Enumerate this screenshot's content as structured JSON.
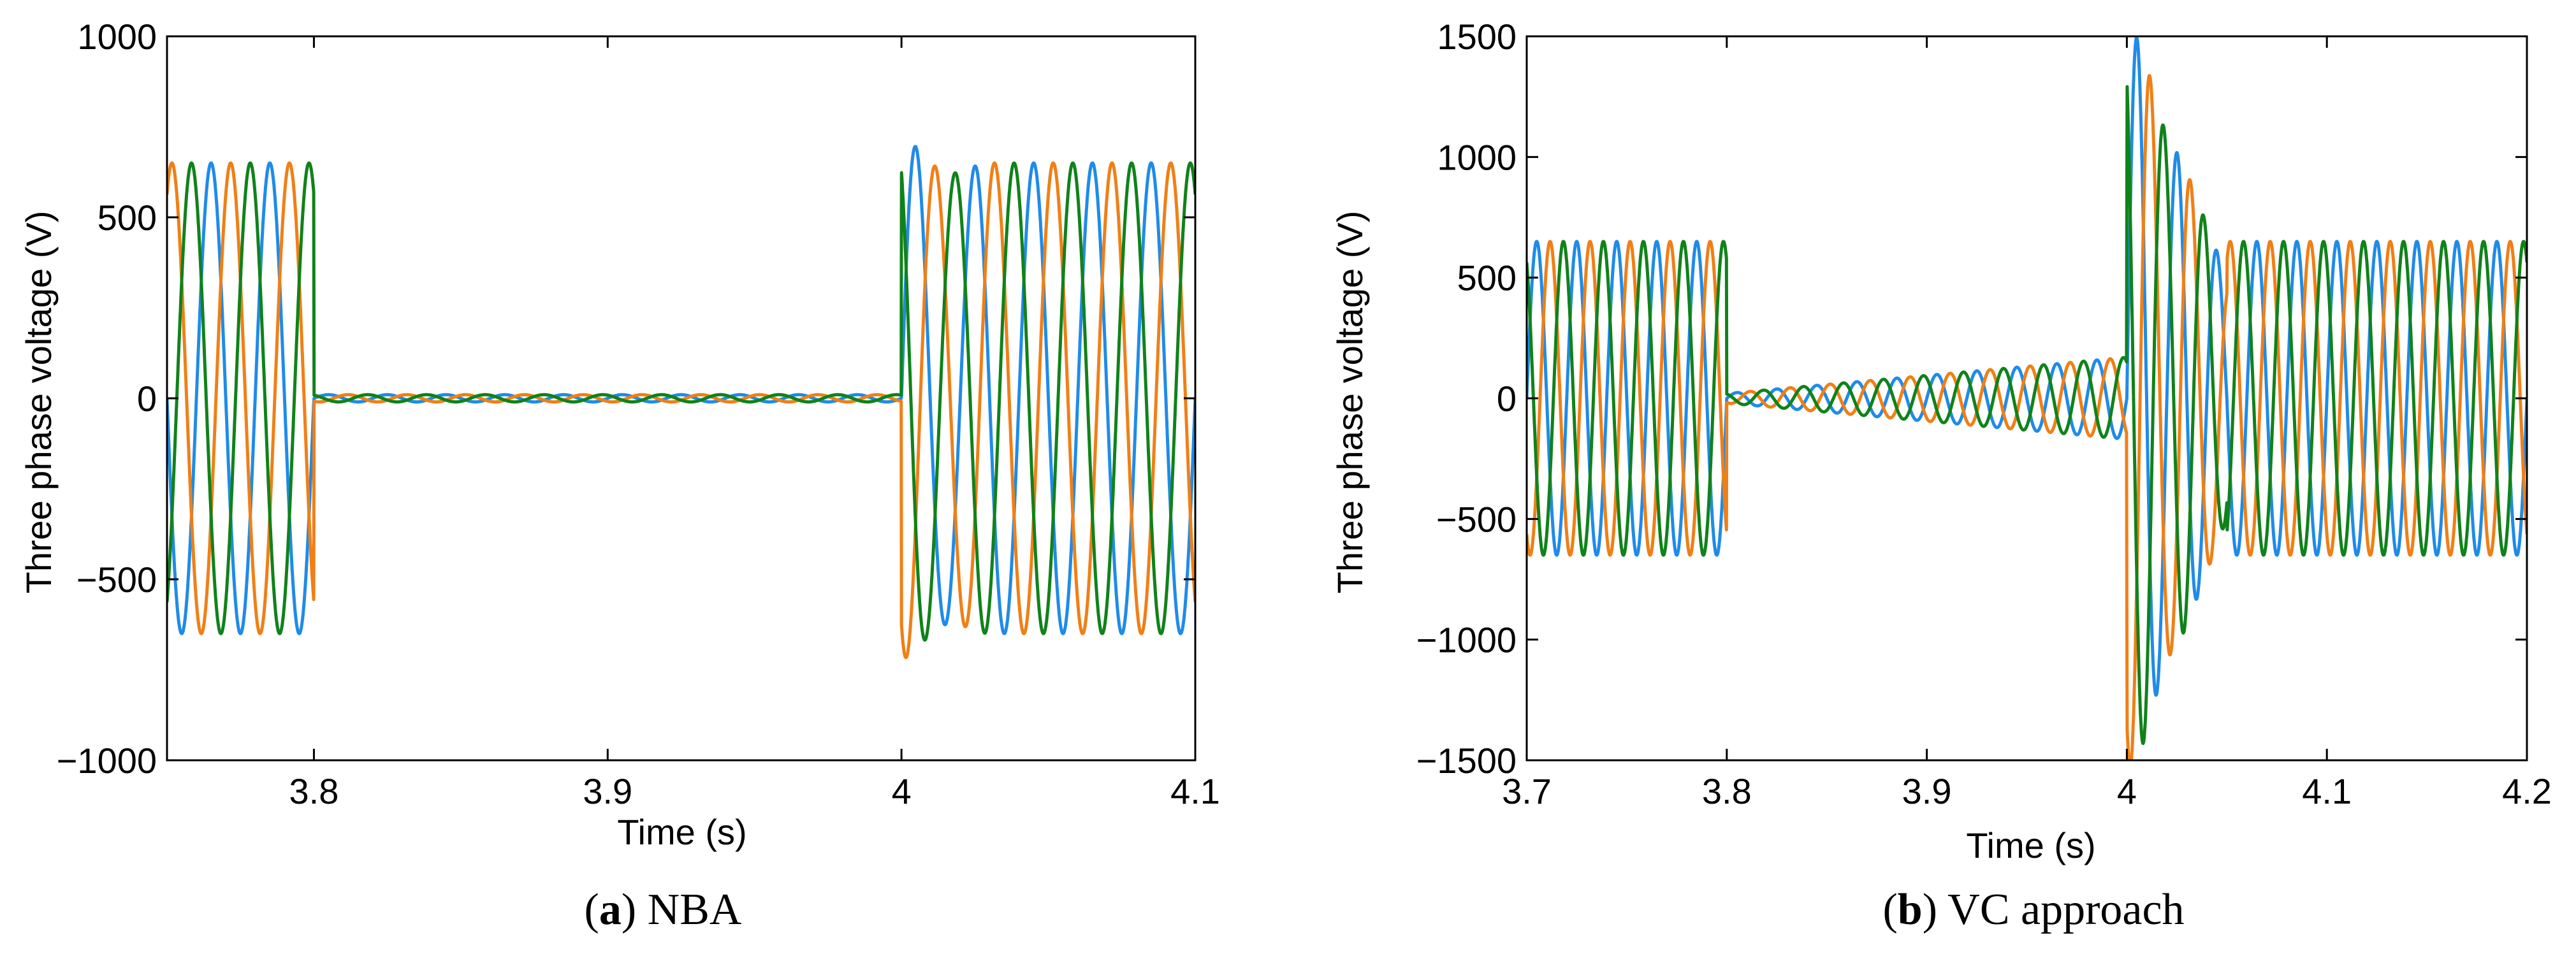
{
  "colors": {
    "phase_a": "#1f8be8",
    "phase_b": "#f07f16",
    "phase_c": "#10821a"
  },
  "chart_data": [
    {
      "type": "line",
      "caption_letter": "a",
      "caption_text": "NBA",
      "xlabel": "Time (s)",
      "ylabel": "Three phase voltage (V)",
      "xlim": [
        3.75,
        4.1
      ],
      "ylim": [
        -1000,
        1000
      ],
      "xticks": [
        3.8,
        3.9,
        4.0,
        4.1
      ],
      "xtick_labels": [
        "3.8",
        "3.9",
        "4",
        "4.1"
      ],
      "yticks": [
        -1000,
        -500,
        0,
        500,
        1000
      ],
      "ytick_labels": [
        "−1000",
        "−500",
        "0",
        "500",
        "1000"
      ],
      "grid": false,
      "frequency_hz": 50,
      "series": [
        {
          "phase_deg": 0,
          "color_key": "phase_a"
        },
        {
          "phase_deg": -120,
          "color_key": "phase_b"
        },
        {
          "phase_deg": 120,
          "color_key": "phase_c"
        }
      ],
      "segments": [
        {
          "t_start": 3.75,
          "t_end": 3.8,
          "amplitude": 650
        },
        {
          "t_start": 3.8,
          "t_end": 4.0,
          "amplitude": 10
        },
        {
          "t_start": 4.0,
          "t_end": 4.1,
          "amplitude": 650
        }
      ],
      "transient": {
        "t": 4.0,
        "peak": 770,
        "min": -720
      }
    },
    {
      "type": "line",
      "caption_letter": "b",
      "caption_text": "VC approach",
      "xlabel": "Time (s)",
      "ylabel": "Three phase voltage (V)",
      "xlim": [
        3.7,
        4.2
      ],
      "ylim": [
        -1500,
        1500
      ],
      "xticks": [
        3.7,
        3.8,
        3.9,
        4.0,
        4.1,
        4.2
      ],
      "xtick_labels": [
        "3.7",
        "3.8",
        "3.9",
        "4",
        "4.1",
        "4.2"
      ],
      "yticks": [
        -1500,
        -1000,
        -500,
        0,
        500,
        1000,
        1500
      ],
      "ytick_labels": [
        "−1500",
        "−1000",
        "−500",
        "0",
        "500",
        "1000",
        "1500"
      ],
      "grid": false,
      "frequency_hz": 50,
      "series": [
        {
          "phase_deg": 0,
          "color_key": "phase_a"
        },
        {
          "phase_deg": -120,
          "color_key": "phase_b"
        },
        {
          "phase_deg": 120,
          "color_key": "phase_c"
        }
      ],
      "segments": [
        {
          "t_start": 3.7,
          "t_end": 3.8,
          "amplitude": 650
        },
        {
          "t_start": 3.8,
          "t_end": 4.0,
          "amplitude_start": 20,
          "amplitude_end": 170
        },
        {
          "t_start": 4.0,
          "t_end": 4.05,
          "amplitude_start": 1600,
          "amplitude_end": 500
        },
        {
          "t_start": 4.05,
          "t_end": 4.2,
          "amplitude": 650
        }
      ],
      "transient": {
        "t": 4.0,
        "peak": 1500,
        "min": -1500
      }
    }
  ]
}
